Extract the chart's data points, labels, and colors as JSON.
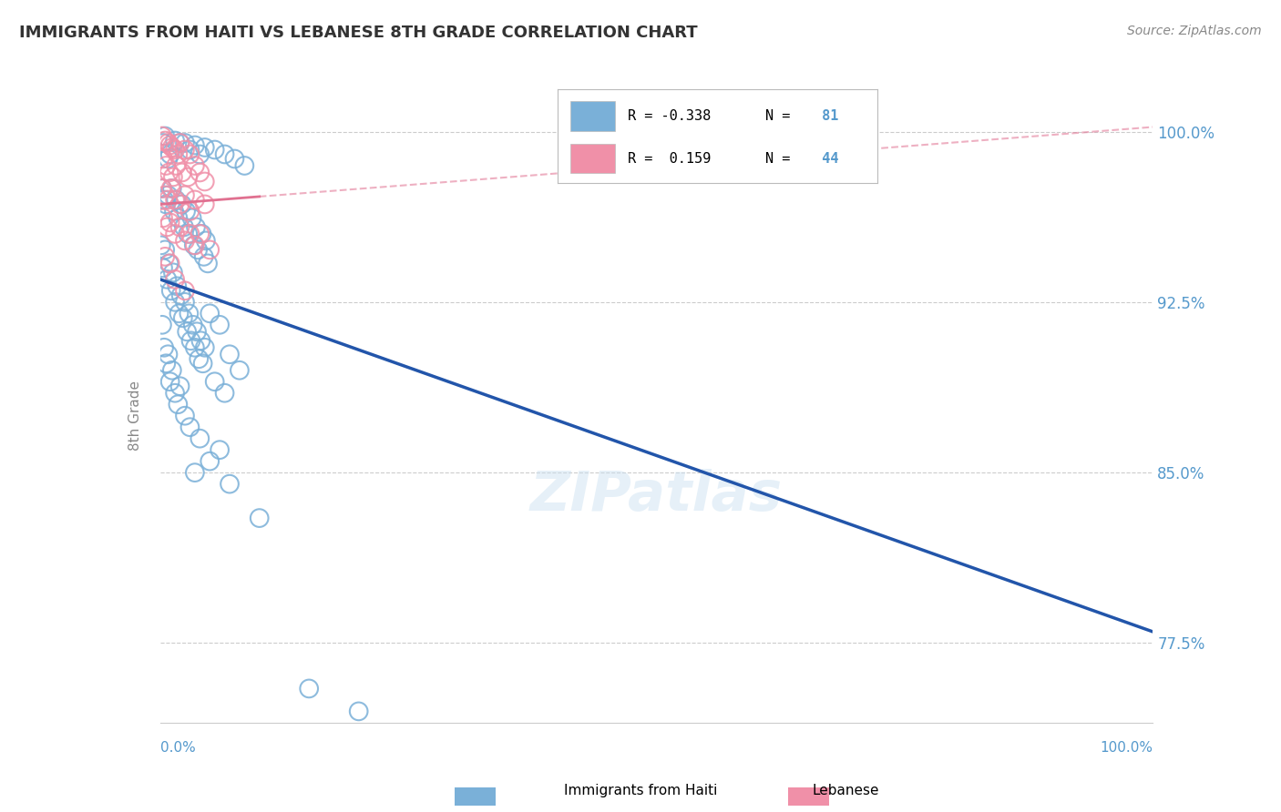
{
  "title": "IMMIGRANTS FROM HAITI VS LEBANESE 8TH GRADE CORRELATION CHART",
  "source_text": "Source: ZipAtlas.com",
  "ylabel": "8th Grade",
  "xlim": [
    0.0,
    100.0
  ],
  "ylim": [
    74.0,
    101.5
  ],
  "yticks": [
    77.5,
    85.0,
    92.5,
    100.0
  ],
  "ytick_labels": [
    "77.5%",
    "85.0%",
    "92.5%",
    "100.0%"
  ],
  "haiti_scatter_color": "#7ab0d8",
  "lebanese_scatter_color": "#f090a8",
  "haiti_line_color": "#2255aa",
  "lebanese_line_color": "#e07090",
  "watermark": "ZIPatlas",
  "haiti_line_x0": 0.0,
  "haiti_line_y0": 93.5,
  "haiti_line_x1": 100.0,
  "haiti_line_y1": 78.0,
  "lebanese_line_x0": 0.0,
  "lebanese_line_y0": 96.8,
  "lebanese_line_x1": 100.0,
  "lebanese_line_y1": 100.2,
  "lebanese_solid_end": 10.0,
  "haiti_points": [
    [
      0.5,
      99.8
    ],
    [
      1.5,
      99.6
    ],
    [
      2.5,
      99.5
    ],
    [
      3.5,
      99.4
    ],
    [
      4.5,
      99.3
    ],
    [
      5.5,
      99.2
    ],
    [
      6.5,
      99.0
    ],
    [
      7.5,
      98.8
    ],
    [
      8.5,
      98.5
    ],
    [
      2.0,
      99.5
    ],
    [
      1.0,
      99.0
    ],
    [
      0.8,
      98.8
    ],
    [
      3.0,
      99.2
    ],
    [
      0.3,
      99.5
    ],
    [
      4.0,
      99.0
    ],
    [
      0.2,
      97.5
    ],
    [
      0.4,
      97.0
    ],
    [
      0.6,
      96.8
    ],
    [
      0.8,
      97.2
    ],
    [
      1.2,
      97.5
    ],
    [
      1.4,
      96.5
    ],
    [
      1.6,
      97.0
    ],
    [
      1.8,
      96.2
    ],
    [
      2.2,
      96.8
    ],
    [
      2.4,
      95.8
    ],
    [
      2.6,
      96.5
    ],
    [
      2.8,
      95.5
    ],
    [
      3.2,
      96.2
    ],
    [
      3.4,
      95.0
    ],
    [
      3.6,
      95.8
    ],
    [
      3.8,
      94.8
    ],
    [
      4.2,
      95.5
    ],
    [
      4.4,
      94.5
    ],
    [
      4.6,
      95.2
    ],
    [
      4.8,
      94.2
    ],
    [
      0.1,
      95.0
    ],
    [
      0.3,
      94.0
    ],
    [
      0.5,
      94.8
    ],
    [
      0.7,
      93.5
    ],
    [
      0.9,
      94.2
    ],
    [
      1.1,
      93.0
    ],
    [
      1.3,
      93.8
    ],
    [
      1.5,
      92.5
    ],
    [
      1.7,
      93.2
    ],
    [
      1.9,
      92.0
    ],
    [
      2.1,
      92.8
    ],
    [
      2.3,
      91.8
    ],
    [
      2.5,
      92.5
    ],
    [
      2.7,
      91.2
    ],
    [
      2.9,
      92.0
    ],
    [
      3.1,
      90.8
    ],
    [
      3.3,
      91.5
    ],
    [
      3.5,
      90.5
    ],
    [
      3.7,
      91.2
    ],
    [
      3.9,
      90.0
    ],
    [
      4.1,
      90.8
    ],
    [
      4.3,
      89.8
    ],
    [
      4.5,
      90.5
    ],
    [
      5.0,
      92.0
    ],
    [
      6.0,
      91.5
    ],
    [
      7.0,
      90.2
    ],
    [
      8.0,
      89.5
    ],
    [
      5.5,
      89.0
    ],
    [
      6.5,
      88.5
    ],
    [
      0.2,
      91.5
    ],
    [
      0.4,
      90.5
    ],
    [
      0.6,
      89.8
    ],
    [
      0.8,
      90.2
    ],
    [
      1.0,
      89.0
    ],
    [
      1.2,
      89.5
    ],
    [
      1.5,
      88.5
    ],
    [
      1.8,
      88.0
    ],
    [
      2.0,
      88.8
    ],
    [
      2.5,
      87.5
    ],
    [
      3.0,
      87.0
    ],
    [
      4.0,
      86.5
    ],
    [
      5.0,
      85.5
    ],
    [
      3.5,
      85.0
    ],
    [
      6.0,
      86.0
    ],
    [
      7.0,
      84.5
    ],
    [
      10.0,
      83.0
    ],
    [
      15.0,
      75.5
    ],
    [
      20.0,
      74.5
    ]
  ],
  "lebanese_points": [
    [
      0.2,
      99.8
    ],
    [
      0.5,
      99.6
    ],
    [
      0.8,
      99.5
    ],
    [
      1.0,
      99.4
    ],
    [
      1.2,
      99.3
    ],
    [
      1.5,
      99.2
    ],
    [
      1.8,
      99.0
    ],
    [
      2.0,
      99.5
    ],
    [
      2.5,
      99.2
    ],
    [
      3.0,
      99.0
    ],
    [
      0.3,
      98.8
    ],
    [
      0.6,
      98.5
    ],
    [
      0.9,
      98.2
    ],
    [
      1.3,
      98.0
    ],
    [
      1.6,
      98.5
    ],
    [
      2.2,
      98.2
    ],
    [
      2.8,
      98.0
    ],
    [
      3.5,
      98.5
    ],
    [
      4.0,
      98.2
    ],
    [
      4.5,
      97.8
    ],
    [
      0.2,
      97.5
    ],
    [
      0.5,
      97.2
    ],
    [
      0.8,
      97.0
    ],
    [
      1.1,
      97.5
    ],
    [
      1.5,
      97.0
    ],
    [
      2.0,
      96.8
    ],
    [
      2.5,
      97.2
    ],
    [
      3.0,
      96.5
    ],
    [
      3.5,
      97.0
    ],
    [
      4.5,
      96.8
    ],
    [
      0.3,
      96.2
    ],
    [
      0.7,
      95.8
    ],
    [
      1.0,
      96.0
    ],
    [
      1.5,
      95.5
    ],
    [
      2.0,
      95.8
    ],
    [
      2.5,
      95.2
    ],
    [
      3.0,
      95.5
    ],
    [
      3.5,
      95.0
    ],
    [
      4.0,
      95.5
    ],
    [
      5.0,
      94.8
    ],
    [
      0.5,
      94.5
    ],
    [
      1.0,
      94.2
    ],
    [
      1.5,
      93.5
    ],
    [
      2.5,
      93.0
    ]
  ]
}
